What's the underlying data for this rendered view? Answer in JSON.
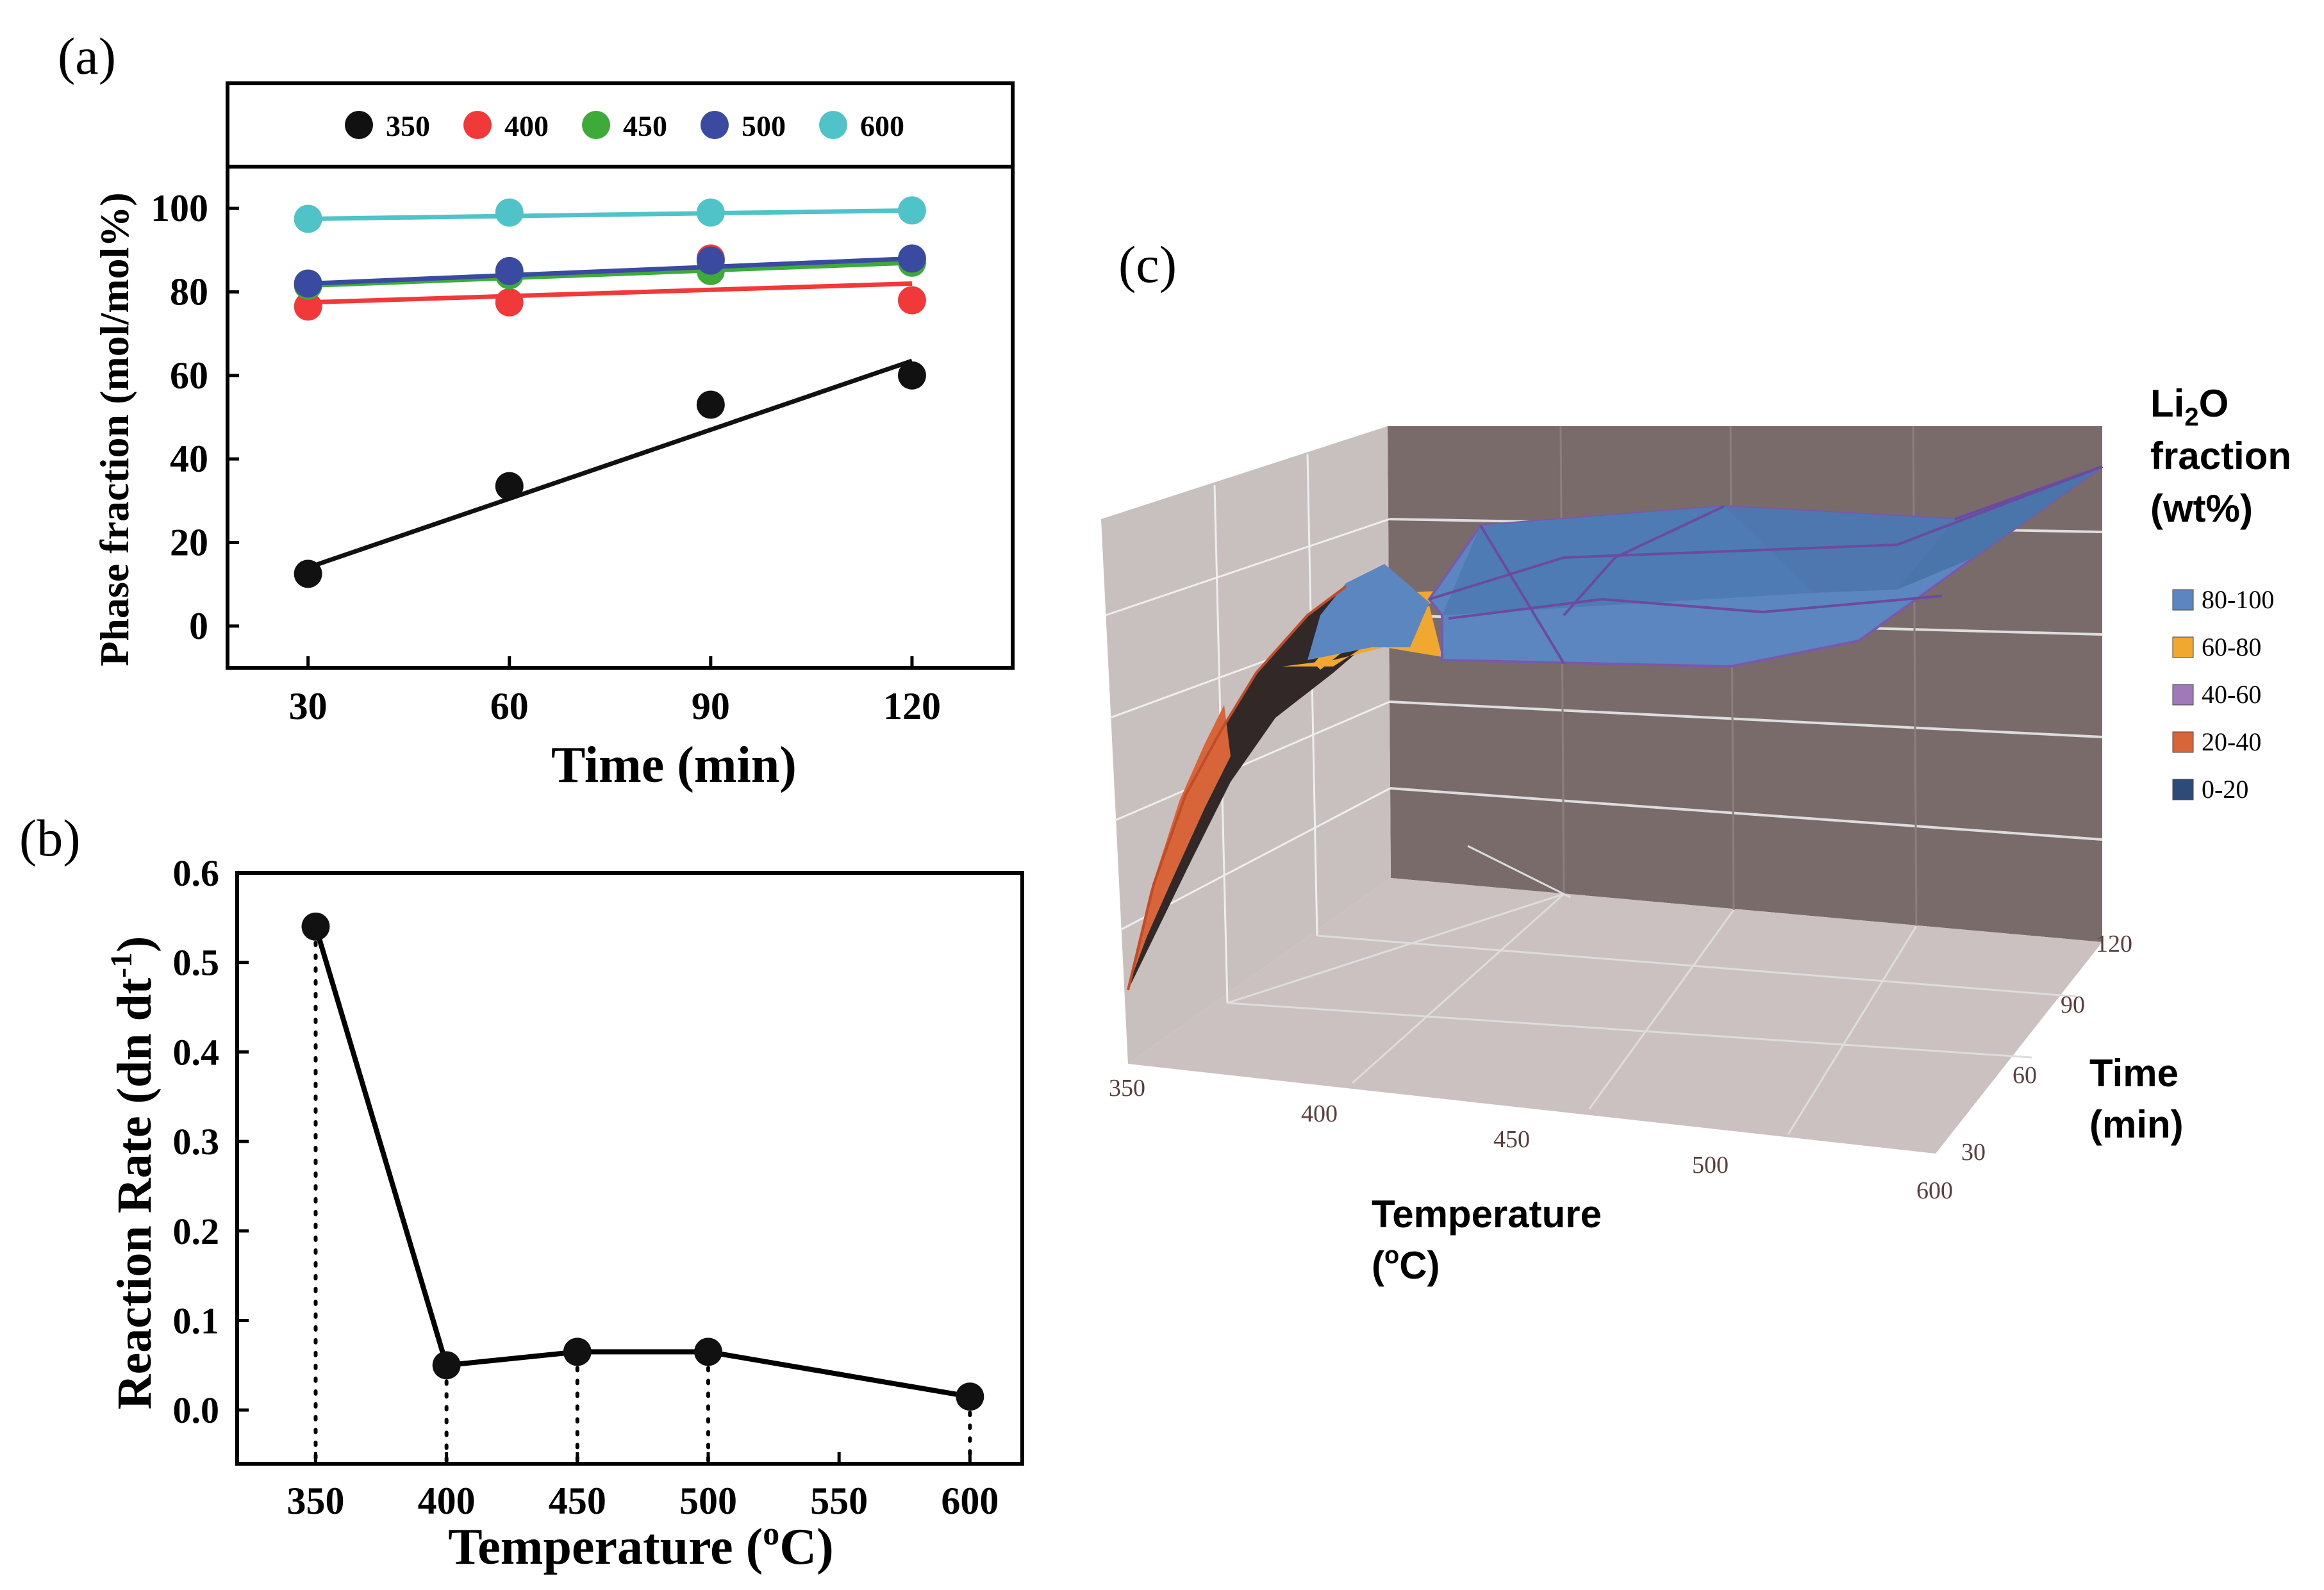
{
  "chart_data": [
    {
      "panel": "(a)",
      "type": "scatter",
      "xlabel": "Time (min)",
      "ylabel": "Phase fraction (mol/mol%)",
      "x": [
        30,
        60,
        90,
        120
      ],
      "xticks": [
        "30",
        "60",
        "90",
        "120"
      ],
      "yticks": [
        "0",
        "20",
        "40",
        "60",
        "80",
        "100"
      ],
      "xlim": [
        18,
        135
      ],
      "ylim": [
        -10,
        110
      ],
      "legend_position": "top",
      "series": [
        {
          "name": "350",
          "color": "#111111",
          "values": [
            12.5,
            33.5,
            53,
            60
          ],
          "fit": [
            14,
            63.5
          ]
        },
        {
          "name": "400",
          "color": "#f2393a",
          "values": [
            76.5,
            77.5,
            88,
            78
          ],
          "fit": [
            77.5,
            82
          ]
        },
        {
          "name": "450",
          "color": "#3eaa3a",
          "values": [
            81.5,
            84,
            85,
            87
          ],
          "fit": [
            81.5,
            87
          ]
        },
        {
          "name": "500",
          "color": "#3a4aa0",
          "values": [
            82,
            85,
            87.5,
            88
          ],
          "fit": [
            82,
            88
          ]
        },
        {
          "name": "600",
          "color": "#4fc3c8",
          "values": [
            97.5,
            99,
            99,
            99.5
          ],
          "fit": [
            97.5,
            99.5
          ]
        }
      ]
    },
    {
      "panel": "(b)",
      "type": "line",
      "xlabel_main": "Temperature (",
      "xlabel_sup": "o",
      "xlabel_end": "C)",
      "ylabel_main": "Reaction Rate (dn dt",
      "ylabel_sup": "-1",
      "ylabel_end": ")",
      "x": [
        350,
        400,
        450,
        500,
        600
      ],
      "values": [
        0.54,
        0.05,
        0.065,
        0.065,
        0.015
      ],
      "xticks": [
        "350",
        "400",
        "450",
        "500",
        "550",
        "600"
      ],
      "yticks": [
        "0.0",
        "0.1",
        "0.2",
        "0.3",
        "0.4",
        "0.5",
        "0.6"
      ],
      "xlim": [
        320,
        620
      ],
      "ylim": [
        -0.06,
        0.6
      ],
      "drop_lines": true
    },
    {
      "panel": "(c)",
      "type": "surface",
      "x_label_main": "Temperature",
      "x_label_unit": "(oC)",
      "x_label_pre": "(",
      "x_label_sup": "o",
      "x_label_post": "C)",
      "y_label_main": "Time",
      "y_label_unit": "(min)",
      "x_ticks": [
        "350",
        "400",
        "450",
        "500",
        "600"
      ],
      "y_ticks": [
        "30",
        "60",
        "90",
        "120"
      ],
      "legend_title_1": "Li",
      "legend_title_sub": "2",
      "legend_title_2": "O",
      "legend_title_3": "fraction",
      "legend_title_4": "(wt%)",
      "legend": [
        {
          "label": "80-100",
          "color": "#5b86c0"
        },
        {
          "label": "60-80",
          "color": "#f0a830"
        },
        {
          "label": "40-60",
          "color": "#a07ab8"
        },
        {
          "label": "20-40",
          "color": "#d8643a"
        },
        {
          "label": "0-20",
          "color": "#2e4a78"
        }
      ]
    }
  ],
  "labels": {
    "panel_a": "(a)",
    "panel_b": "(b)",
    "panel_c": "(c)"
  }
}
